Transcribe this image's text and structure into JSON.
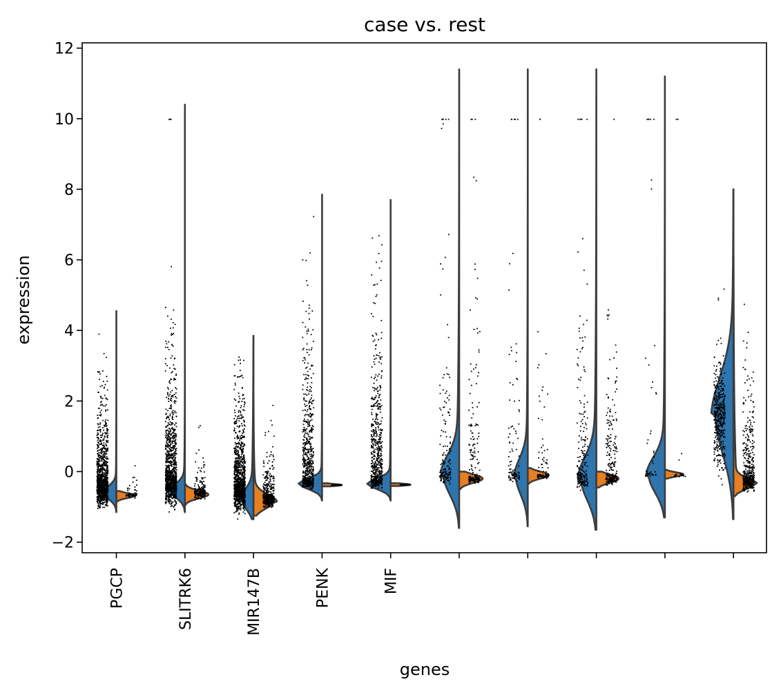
{
  "chart_data": {
    "type": "violin",
    "title": "case vs. rest",
    "xlabel": "genes",
    "ylabel": "expression",
    "ylim": [
      -2.3,
      12.15
    ],
    "yticks": [
      -2,
      0,
      2,
      4,
      6,
      8,
      10,
      12
    ],
    "ytick_labels": [
      "−2",
      "0",
      "2",
      "4",
      "6",
      "8",
      "10",
      "12"
    ],
    "categories": [
      "PGCP",
      "SLITRK6",
      "MIR147B",
      "PENK",
      "MIF",
      "",
      "",
      "",
      "",
      ""
    ],
    "split_colors": {
      "case": "#2e75ad",
      "rest": "#e67e22"
    },
    "grid": false,
    "violins": [
      {
        "left": {
          "min": -1.15,
          "max": 4.55,
          "peak": -0.6,
          "width": 0.22,
          "sd": 0.18,
          "tail": 0.06,
          "tailScale": 1.0
        },
        "right": {
          "min": -0.85,
          "max": -0.55,
          "peak": -0.68,
          "width": 0.3,
          "sd": 0.07,
          "tail": 0.0,
          "tailScale": 1.0
        }
      },
      {
        "left": {
          "min": -1.15,
          "max": 10.4,
          "peak": -0.55,
          "width": 0.24,
          "sd": 0.2,
          "tail": 0.1,
          "tailScale": 1.0
        },
        "right": {
          "min": -0.95,
          "max": -0.35,
          "peak": -0.65,
          "width": 0.38,
          "sd": 0.11,
          "tail": 0.0,
          "tailScale": 1.0
        }
      },
      {
        "left": {
          "min": -1.35,
          "max": 3.85,
          "peak": -0.8,
          "width": 0.22,
          "sd": 0.28,
          "tail": 0.2,
          "tailScale": 1.6
        },
        "right": {
          "min": -1.25,
          "max": 2.05,
          "peak": -0.85,
          "width": 0.38,
          "sd": 0.2,
          "tail": 0.15,
          "tailScale": 0.8
        }
      },
      {
        "left": {
          "min": -0.82,
          "max": 7.85,
          "peak": -0.35,
          "width": 0.38,
          "sd": 0.15,
          "tail": 0.04,
          "tailScale": 1.0
        },
        "right": {
          "min": -0.42,
          "max": -0.33,
          "peak": -0.38,
          "width": 0.32,
          "sd": 0.03,
          "tail": 0.0,
          "tailScale": 1.0
        }
      },
      {
        "left": {
          "min": -0.82,
          "max": 7.7,
          "peak": -0.35,
          "width": 0.38,
          "sd": 0.15,
          "tail": 0.05,
          "tailScale": 1.0
        },
        "right": {
          "min": -0.41,
          "max": -0.33,
          "peak": -0.37,
          "width": 0.32,
          "sd": 0.03,
          "tail": 0.0,
          "tailScale": 1.0
        }
      },
      {
        "left": {
          "min": -1.6,
          "max": 11.4,
          "peak": -0.1,
          "width": 0.3,
          "sd": 0.55,
          "tail": 0.2,
          "tailScale": 2.5
        },
        "right": {
          "min": -0.5,
          "max": 0.0,
          "peak": -0.2,
          "width": 0.38,
          "sd": 0.12,
          "tail": 0.0,
          "tailScale": 1.0
        }
      },
      {
        "left": {
          "min": -1.55,
          "max": 11.4,
          "peak": -0.15,
          "width": 0.22,
          "sd": 0.5,
          "tail": 0.15,
          "tailScale": 2.5
        },
        "right": {
          "min": -0.35,
          "max": 0.1,
          "peak": -0.1,
          "width": 0.34,
          "sd": 0.1,
          "tail": 0.0,
          "tailScale": 1.0
        }
      },
      {
        "left": {
          "min": -1.65,
          "max": 11.4,
          "peak": -0.2,
          "width": 0.3,
          "sd": 0.6,
          "tail": 0.2,
          "tailScale": 2.5
        },
        "right": {
          "min": -0.45,
          "max": 0.0,
          "peak": -0.2,
          "width": 0.36,
          "sd": 0.12,
          "tail": 0.0,
          "tailScale": 1.0
        }
      },
      {
        "left": {
          "min": -1.3,
          "max": 11.2,
          "peak": -0.1,
          "width": 0.3,
          "sd": 0.5,
          "tail": 0.15,
          "tailScale": 2.5
        },
        "right": {
          "min": -0.2,
          "max": 0.05,
          "peak": -0.08,
          "width": 0.3,
          "sd": 0.06,
          "tail": 0.0,
          "tailScale": 1.0
        }
      },
      {
        "left": {
          "min": -1.35,
          "max": 8.0,
          "peak": 1.6,
          "width": 0.36,
          "sd": 1.1,
          "tail": 0.25,
          "tailScale": 2.0
        },
        "right": {
          "min": -0.7,
          "max": 6.1,
          "peak": -0.35,
          "width": 0.38,
          "sd": 0.15,
          "tail": 0.15,
          "tailScale": 1.8
        }
      }
    ],
    "jitter": [
      {
        "case": {
          "n": 1100,
          "peak": -0.55,
          "sd": 0.3,
          "tail": 0.6,
          "tailScale": 1.4,
          "max": 4.1,
          "outliers": []
        },
        "rest": {
          "n": 60,
          "peak": -0.65,
          "sd": 0.05,
          "tail": 0.3,
          "tailScale": 0.6,
          "max": 1.5,
          "outliers": []
        }
      },
      {
        "case": {
          "n": 1100,
          "peak": -0.5,
          "sd": 0.3,
          "tail": 0.7,
          "tailScale": 1.8,
          "max": 7.4,
          "outliers": [
            10,
            10,
            10
          ]
        },
        "rest": {
          "n": 200,
          "peak": -0.6,
          "sd": 0.1,
          "tail": 0.4,
          "tailScale": 0.6,
          "max": 1.35,
          "outliers": []
        }
      },
      {
        "case": {
          "n": 1100,
          "peak": -0.7,
          "sd": 0.3,
          "tail": 0.7,
          "tailScale": 1.4,
          "max": 3.4,
          "outliers": []
        },
        "rest": {
          "n": 400,
          "peak": -0.8,
          "sd": 0.12,
          "tail": 0.5,
          "tailScale": 0.8,
          "max": 1.9,
          "outliers": []
        }
      },
      {
        "case": {
          "n": 600,
          "peak": -0.3,
          "sd": 0.1,
          "tail": 0.8,
          "tailScale": 2.2,
          "max": 7.4,
          "outliers": []
        },
        "rest": {
          "n": 0,
          "peak": -0.38,
          "sd": 0.02,
          "tail": 0.0,
          "tailScale": 1.0,
          "max": -0.3,
          "outliers": []
        }
      },
      {
        "case": {
          "n": 600,
          "peak": -0.3,
          "sd": 0.1,
          "tail": 0.8,
          "tailScale": 2.2,
          "max": 7.3,
          "outliers": []
        },
        "rest": {
          "n": 0,
          "peak": -0.37,
          "sd": 0.02,
          "tail": 0.0,
          "tailScale": 1.0,
          "max": -0.3,
          "outliers": []
        }
      },
      {
        "case": {
          "n": 150,
          "peak": -0.1,
          "sd": 0.12,
          "tail": 0.55,
          "tailScale": 3.0,
          "max": 9.9,
          "outliers": [
            10,
            10,
            10,
            10,
            10
          ]
        },
        "rest": {
          "n": 180,
          "peak": -0.2,
          "sd": 0.08,
          "tail": 0.5,
          "tailScale": 2.2,
          "max": 8.5,
          "outliers": [
            10,
            10,
            10
          ]
        }
      },
      {
        "case": {
          "n": 90,
          "peak": -0.1,
          "sd": 0.1,
          "tail": 0.55,
          "tailScale": 3.0,
          "max": 9.9,
          "outliers": [
            10,
            10,
            10,
            10,
            10
          ]
        },
        "rest": {
          "n": 80,
          "peak": -0.1,
          "sd": 0.06,
          "tail": 0.5,
          "tailScale": 2.2,
          "max": 8.1,
          "outliers": [
            10,
            10
          ]
        }
      },
      {
        "case": {
          "n": 200,
          "peak": -0.2,
          "sd": 0.15,
          "tail": 0.6,
          "tailScale": 2.8,
          "max": 9.3,
          "outliers": [
            10,
            10,
            10,
            10,
            10
          ]
        },
        "rest": {
          "n": 250,
          "peak": -0.2,
          "sd": 0.1,
          "tail": 0.55,
          "tailScale": 2.0,
          "max": 8.5,
          "outliers": [
            10
          ]
        }
      },
      {
        "case": {
          "n": 40,
          "peak": -0.05,
          "sd": 0.06,
          "tail": 0.5,
          "tailScale": 3.0,
          "max": 9.5,
          "outliers": [
            10,
            10,
            10,
            10,
            10
          ]
        },
        "rest": {
          "n": 20,
          "peak": -0.08,
          "sd": 0.03,
          "tail": 0.1,
          "tailScale": 2.0,
          "max": 2.5,
          "outliers": [
            10,
            10
          ]
        }
      },
      {
        "case": {
          "n": 400,
          "peak": 1.5,
          "sd": 1.0,
          "tail": 0.2,
          "tailScale": 1.5,
          "max": 7.1,
          "outliers": []
        },
        "rest": {
          "n": 450,
          "peak": -0.3,
          "sd": 0.15,
          "tail": 0.6,
          "tailScale": 1.5,
          "max": 5.9,
          "outliers": []
        }
      }
    ]
  }
}
